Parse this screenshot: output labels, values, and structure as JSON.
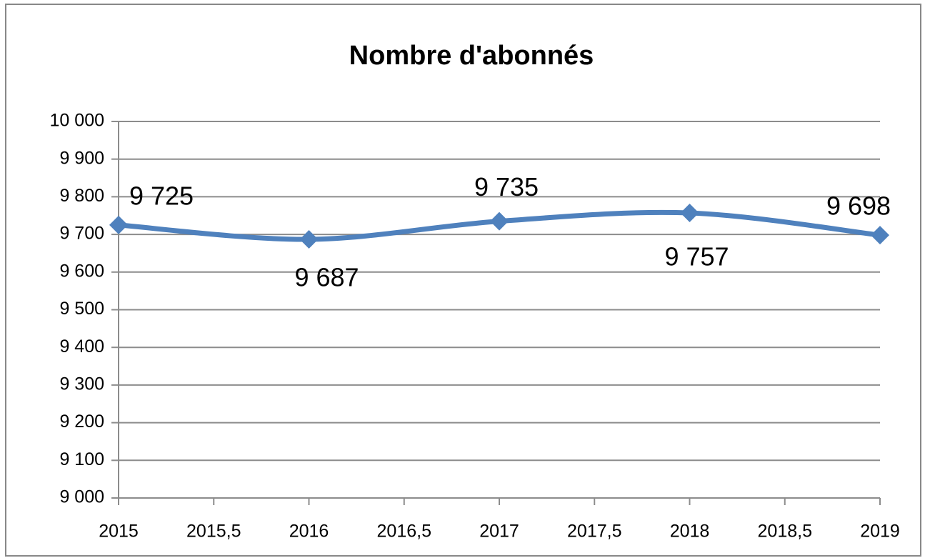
{
  "chart_data": {
    "type": "line",
    "title": "Nombre d'abonnés",
    "x": [
      2015,
      2016,
      2017,
      2018,
      2019
    ],
    "series": [
      {
        "name": "Nombre d'abonnés",
        "color": "#4f81bd",
        "values": [
          9725,
          9687,
          9735,
          9757,
          9698
        ],
        "value_labels": [
          "9 725",
          "9 687",
          "9 735",
          "9 757",
          "9 698"
        ]
      }
    ],
    "xlim": [
      2015,
      2019
    ],
    "xticks": [
      2015,
      {
        "value": 2015.5,
        "label": "2015,5"
      },
      2016,
      {
        "value": 2016.5,
        "label": "2016,5"
      },
      2017,
      {
        "value": 2017.5,
        "label": "2017,5"
      },
      2018,
      {
        "value": 2018.5,
        "label": "2018,5"
      },
      2019
    ],
    "ylim": [
      9000,
      10000
    ],
    "yticks": [
      {
        "value": 9000,
        "label": "9 000"
      },
      {
        "value": 9100,
        "label": "9 100"
      },
      {
        "value": 9200,
        "label": "9 200"
      },
      {
        "value": 9300,
        "label": "9 300"
      },
      {
        "value": 9400,
        "label": "9 400"
      },
      {
        "value": 9500,
        "label": "9 500"
      },
      {
        "value": 9600,
        "label": "9 600"
      },
      {
        "value": 9700,
        "label": "9 700"
      },
      {
        "value": 9800,
        "label": "9 800"
      },
      {
        "value": 9900,
        "label": "9 900"
      },
      {
        "value": 10000,
        "label": "10 000"
      }
    ],
    "grid": true,
    "smooth": true
  }
}
